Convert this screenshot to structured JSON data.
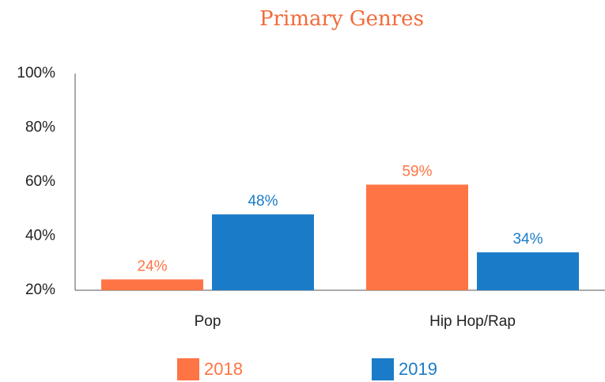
{
  "chart_data": {
    "type": "bar",
    "title": "Primary Genres",
    "categories": [
      "Pop",
      "Hip Hop/Rap"
    ],
    "series": [
      {
        "name": "2018",
        "color": "#ff7445",
        "values": [
          24,
          59
        ],
        "value_labels": [
          "24%",
          "59%"
        ]
      },
      {
        "name": "2019",
        "color": "#1a7cc8",
        "values": [
          48,
          34
        ],
        "value_labels": [
          "48%",
          "34%"
        ]
      }
    ],
    "ylim": [
      20,
      100
    ],
    "yticks": [
      {
        "value": 20,
        "label": "20%"
      },
      {
        "value": 40,
        "label": "40%"
      },
      {
        "value": 60,
        "label": "60%"
      },
      {
        "value": 80,
        "label": "80%"
      },
      {
        "value": 100,
        "label": "100%"
      }
    ],
    "grid": false,
    "legend": "bottom"
  }
}
